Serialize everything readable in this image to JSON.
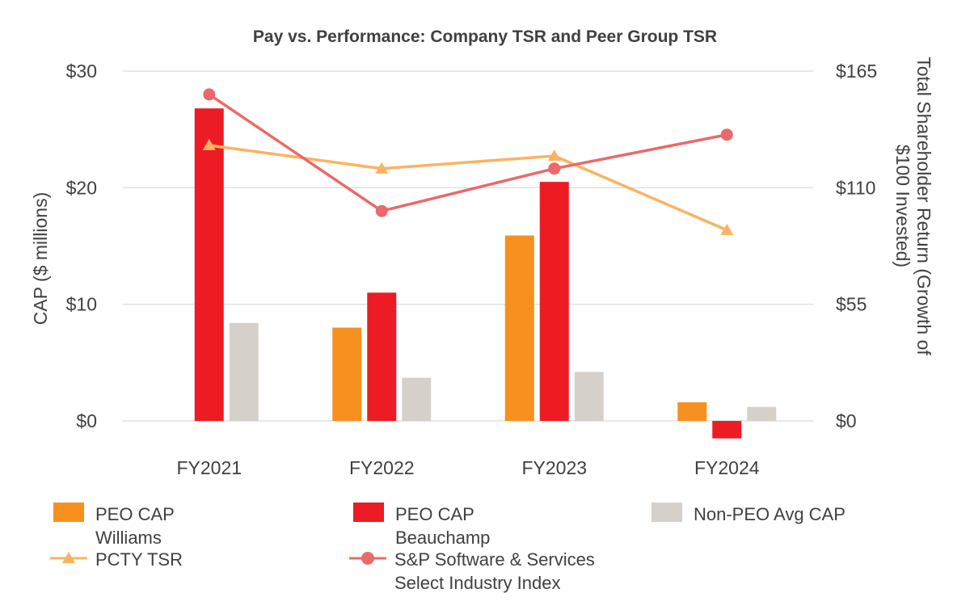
{
  "chart_data": {
    "type": "bar+line",
    "title": "Pay vs. Performance: Company TSR and Peer Group TSR",
    "categories": [
      "FY2021",
      "FY2022",
      "FY2023",
      "FY2024"
    ],
    "y_left": {
      "label": "CAP ($ millions)",
      "range": [
        0,
        30
      ],
      "ticks": [
        0,
        10,
        20,
        30
      ],
      "tick_labels": [
        "$0",
        "$10",
        "$20",
        "$30"
      ]
    },
    "y_right": {
      "label": "Total Shareholder Return (Growth of $100 Invested)",
      "range": [
        0,
        165
      ],
      "ticks": [
        0,
        55,
        110,
        165
      ],
      "tick_labels": [
        "$0",
        "$55",
        "$110",
        "$165"
      ]
    },
    "bar_series": [
      {
        "name": "PEO CAP Williams",
        "color": "#F7901E",
        "values": [
          null,
          8.0,
          15.9,
          1.6
        ]
      },
      {
        "name": "PEO CAP Beauchamp",
        "color": "#ED1C24",
        "values": [
          26.8,
          11.0,
          20.5,
          -1.5
        ]
      },
      {
        "name": "Non-PEO Avg CAP",
        "color": "#D6D0CB",
        "values": [
          8.4,
          3.7,
          4.2,
          1.2
        ]
      }
    ],
    "line_series": [
      {
        "name": "PCTY TSR",
        "color": "#FBB360",
        "marker": "triangle",
        "values": [
          130,
          119,
          125,
          90
        ]
      },
      {
        "name": "S&P Software & Services Select Industry Index",
        "color": "#E96A6A",
        "marker": "circle",
        "values": [
          154,
          99,
          119,
          135
        ]
      }
    ],
    "legend": [
      {
        "label": "PEO CAP Williams",
        "kind": "bar",
        "color": "#F7901E"
      },
      {
        "label": "PEO CAP Beauchamp",
        "kind": "bar",
        "color": "#ED1C24"
      },
      {
        "label": "Non-PEO Avg CAP",
        "kind": "bar",
        "color": "#D6D0CB"
      },
      {
        "label": "PCTY TSR",
        "kind": "line-triangle",
        "color": "#FBB360"
      },
      {
        "label": "S&P Software & Services Select Industry Index",
        "kind": "line-circle",
        "color": "#E96A6A"
      }
    ]
  }
}
